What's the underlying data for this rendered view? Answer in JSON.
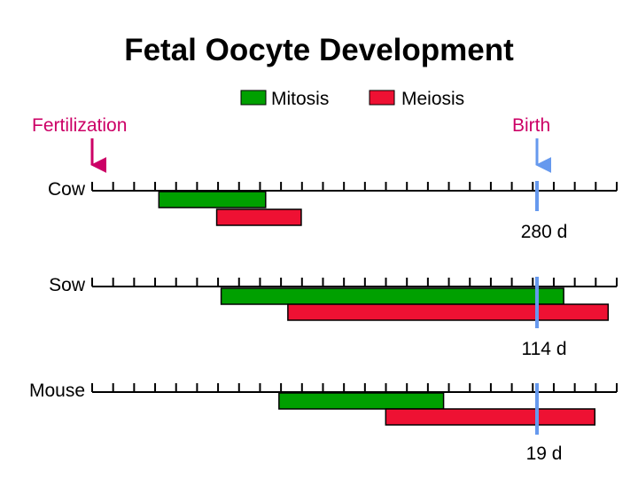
{
  "title": "Fetal Oocyte Development",
  "legend": [
    {
      "label": "Mitosis",
      "color": "#00a000"
    },
    {
      "label": "Meiosis",
      "color": "#ee1133"
    }
  ],
  "fertilization_label": "Fertilization",
  "birth_label": "Birth",
  "colors": {
    "fertilization_arrow": "#cc0066",
    "birth_arrow": "#6699ee",
    "birth_line": "#6699ee",
    "timeline": "#000000",
    "mitosis": "#00a000",
    "meiosis": "#ee1133"
  },
  "tick_count": 26,
  "chart_data": {
    "type": "timeline",
    "unit": "fraction of gestation (0 = fertilization, 1 = birth)",
    "species": [
      {
        "name": "Cow",
        "gestation_label": "280 d",
        "mitosis": [
          0.15,
          0.39
        ],
        "meiosis": [
          0.28,
          0.47
        ]
      },
      {
        "name": "Sow",
        "gestation_label": "114 d",
        "mitosis": [
          0.29,
          1.06
        ],
        "meiosis": [
          0.44,
          1.16
        ]
      },
      {
        "name": "Mouse",
        "gestation_label": "19 d",
        "mitosis": [
          0.42,
          0.79
        ],
        "meiosis": [
          0.66,
          1.13
        ]
      }
    ]
  }
}
